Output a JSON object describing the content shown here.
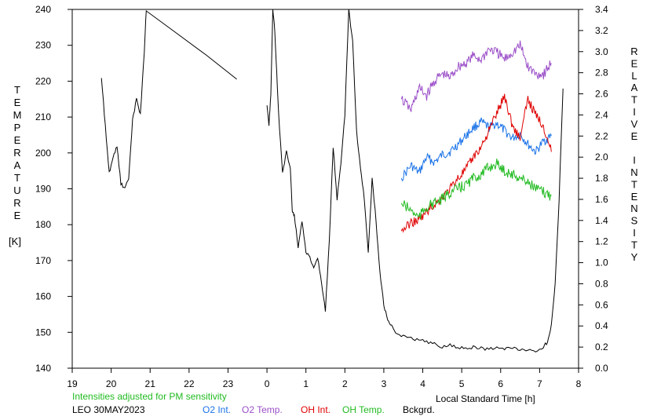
{
  "chart_data": {
    "type": "line",
    "note_text": "Intensities adjusted for PM sensitivity",
    "footer": "LEO 30MAY2023",
    "xlabel": "Local Standard Time [h]",
    "ylabel_left_letters": [
      "T",
      "E",
      "M",
      "P",
      "E",
      "R",
      "A",
      "T",
      "U",
      "R",
      "E"
    ],
    "ylabel_left_unit": "[K]",
    "ylabel_right_letters": [
      "R",
      "E",
      "L",
      "A",
      "T",
      "I",
      "V",
      "E",
      "",
      "I",
      "N",
      "T",
      "E",
      "N",
      "S",
      "I",
      "T",
      "Y"
    ],
    "xlim": [
      19,
      32
    ],
    "x_tick_values": [
      19,
      20,
      21,
      22,
      23,
      24,
      25,
      26,
      27,
      28,
      29,
      30,
      31,
      32
    ],
    "x_tick_labels": [
      "19",
      "20",
      "21",
      "22",
      "23",
      "0",
      "1",
      "2",
      "3",
      "4",
      "5",
      "6",
      "7",
      "8"
    ],
    "ylim_left": [
      140,
      240
    ],
    "y_left_ticks": [
      "140",
      "150",
      "160",
      "170",
      "180",
      "190",
      "200",
      "210",
      "220",
      "230",
      "240"
    ],
    "ylim_right": [
      0.0,
      3.4
    ],
    "y_right_ticks": [
      "0.0",
      "0.2",
      "0.4",
      "0.6",
      "0.8",
      "1.0",
      "1.2",
      "1.4",
      "1.6",
      "1.8",
      "2.0",
      "2.2",
      "2.4",
      "2.6",
      "2.8",
      "3.0",
      "3.2",
      "3.4"
    ],
    "series": [
      {
        "name": "O2 Int.",
        "color": "#1a73e8",
        "axis": "right",
        "x": [
          27.45,
          27.7,
          27.9,
          28.1,
          28.3,
          28.5,
          28.7,
          28.9,
          29.1,
          29.3,
          29.5,
          29.7,
          29.9,
          30.1,
          30.3,
          30.5,
          30.7,
          30.9,
          31.1,
          31.3
        ],
        "y": [
          1.8,
          1.92,
          1.85,
          2.0,
          1.95,
          2.02,
          2.05,
          2.12,
          2.2,
          2.28,
          2.33,
          2.28,
          2.32,
          2.25,
          2.18,
          2.22,
          2.12,
          2.05,
          2.15,
          2.2
        ]
      },
      {
        "name": "O2 Temp.",
        "color": "#9b4fc8",
        "axis": "left",
        "x": [
          27.45,
          27.7,
          27.9,
          28.1,
          28.3,
          28.5,
          28.7,
          28.9,
          29.1,
          29.3,
          29.5,
          29.7,
          29.9,
          30.1,
          30.3,
          30.5,
          30.7,
          30.9,
          31.1,
          31.3
        ],
        "y": [
          215,
          212,
          218,
          216,
          220,
          222,
          221,
          224,
          225,
          227,
          226,
          229,
          228,
          226,
          228,
          230,
          224,
          222,
          222,
          225
        ]
      },
      {
        "name": "OH Int.",
        "color": "#e00000",
        "axis": "right",
        "x": [
          27.45,
          27.7,
          27.9,
          28.1,
          28.3,
          28.5,
          28.7,
          28.9,
          29.1,
          29.3,
          29.5,
          29.7,
          29.9,
          30.1,
          30.3,
          30.5,
          30.7,
          30.9,
          31.1,
          31.3
        ],
        "y": [
          1.3,
          1.38,
          1.4,
          1.48,
          1.55,
          1.62,
          1.7,
          1.8,
          1.88,
          2.0,
          2.1,
          2.25,
          2.42,
          2.58,
          2.3,
          2.18,
          2.55,
          2.4,
          2.3,
          2.05
        ]
      },
      {
        "name": "OH Temp.",
        "color": "#22bb22",
        "axis": "left",
        "x": [
          27.45,
          27.7,
          27.9,
          28.1,
          28.3,
          28.5,
          28.7,
          28.9,
          29.1,
          29.3,
          29.5,
          29.7,
          29.9,
          30.1,
          30.3,
          30.5,
          30.7,
          30.9,
          31.1,
          31.3
        ],
        "y": [
          186,
          184,
          182,
          185,
          186,
          187,
          189,
          190,
          191,
          193,
          194,
          196,
          197,
          195,
          194,
          193,
          192,
          190,
          189,
          188
        ]
      },
      {
        "name": "Bckgrd.",
        "color": "#000000",
        "axis": "right",
        "x": [
          19.75,
          19.85,
          19.95,
          20.05,
          20.15,
          20.25,
          20.35,
          20.45,
          20.55,
          20.65,
          20.75,
          20.85,
          20.9,
          24.0,
          24.05,
          24.1,
          24.15,
          24.2,
          24.25,
          24.3,
          24.4,
          24.5,
          24.6,
          24.65,
          24.7,
          24.8,
          24.9,
          25.0,
          25.1,
          25.2,
          25.3,
          25.4,
          25.5,
          25.6,
          25.7,
          25.8,
          25.9,
          26.0,
          26.1,
          26.2,
          26.3,
          26.4,
          26.5,
          26.6,
          26.7,
          26.8,
          26.9,
          27.0,
          27.1,
          27.2,
          27.3,
          27.5,
          27.7,
          27.9,
          28.1,
          28.3,
          28.5,
          28.7,
          28.9,
          29.1,
          29.3,
          29.5,
          29.7,
          29.9,
          30.1,
          30.3,
          30.5,
          30.7,
          30.9,
          31.1,
          31.2,
          31.3,
          31.4,
          31.5,
          31.6
        ],
        "y": [
          2.75,
          2.3,
          1.85,
          2.0,
          2.1,
          1.75,
          1.7,
          1.8,
          2.35,
          2.55,
          2.4,
          3.0,
          3.4,
          2.5,
          2.3,
          2.6,
          3.4,
          3.2,
          2.8,
          2.4,
          1.85,
          2.05,
          1.9,
          1.5,
          1.45,
          1.15,
          1.4,
          1.1,
          1.05,
          0.95,
          1.05,
          0.8,
          0.55,
          1.2,
          2.1,
          1.6,
          1.95,
          2.4,
          3.4,
          3.1,
          2.25,
          1.9,
          1.6,
          1.1,
          1.8,
          1.4,
          0.9,
          0.6,
          0.45,
          0.4,
          0.32,
          0.3,
          0.28,
          0.27,
          0.25,
          0.23,
          0.2,
          0.22,
          0.2,
          0.18,
          0.2,
          0.19,
          0.18,
          0.2,
          0.18,
          0.19,
          0.17,
          0.18,
          0.16,
          0.2,
          0.25,
          0.4,
          0.8,
          1.6,
          2.65
        ]
      }
    ]
  }
}
